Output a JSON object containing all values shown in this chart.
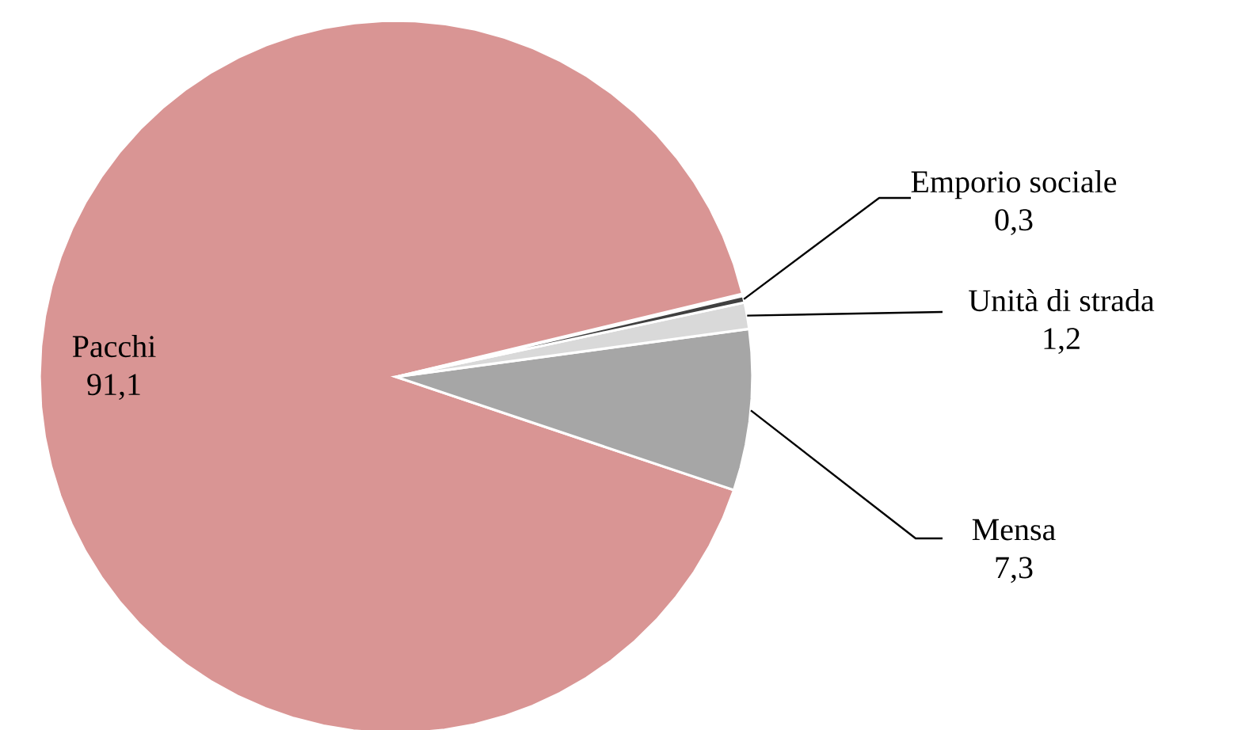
{
  "chart_data": {
    "type": "pie",
    "categories": [
      "Pacchi",
      "Mensa",
      "Unità di strada",
      "Emporio sociale"
    ],
    "values": [
      91.1,
      7.3,
      1.2,
      0.3
    ],
    "value_labels": [
      "91,1",
      "7,3",
      "1,2",
      "0,3"
    ],
    "colors": [
      "#d99594",
      "#a6a6a6",
      "#d9d9d9",
      "#404040"
    ]
  }
}
